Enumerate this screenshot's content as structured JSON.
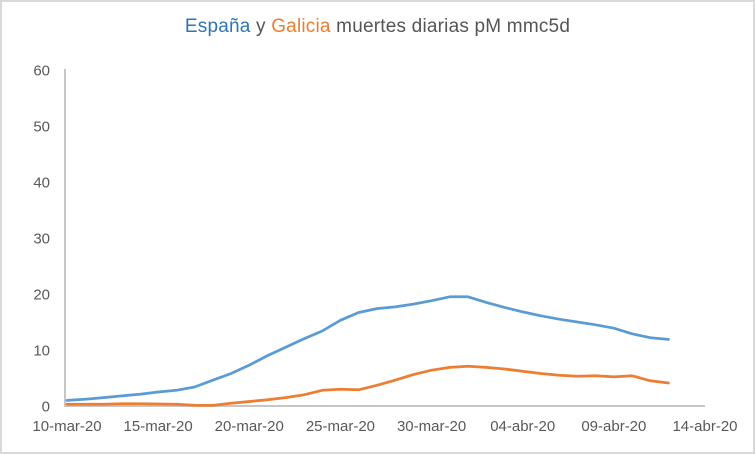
{
  "window": {
    "background": "#ffffff",
    "border_color": "#d9d9d9"
  },
  "title": {
    "series1": "España",
    "connector": " y ",
    "series2": "Galicia",
    "suffix": " muertes diarias pM mmc5d",
    "series1_color": "#2e75b6",
    "series2_color": "#ed7d31",
    "text_color": "#555555"
  },
  "chart_data": {
    "type": "line",
    "title": "España y Galicia muertes diarias pM mmc5d",
    "x": [
      "10-mar-20",
      "11-mar-20",
      "12-mar-20",
      "13-mar-20",
      "14-mar-20",
      "15-mar-20",
      "16-mar-20",
      "17-mar-20",
      "18-mar-20",
      "19-mar-20",
      "20-mar-20",
      "21-mar-20",
      "22-mar-20",
      "23-mar-20",
      "24-mar-20",
      "25-mar-20",
      "26-mar-20",
      "27-mar-20",
      "28-mar-20",
      "29-mar-20",
      "30-mar-20",
      "31-mar-20",
      "01-abr-20",
      "02-abr-20",
      "03-abr-20",
      "04-abr-20",
      "05-abr-20",
      "06-abr-20",
      "07-abr-20",
      "08-abr-20",
      "09-abr-20",
      "10-abr-20",
      "11-abr-20",
      "12-abr-20"
    ],
    "series": [
      {
        "name": "España",
        "color": "#5b9bd5",
        "values": [
          1.0,
          1.2,
          1.5,
          1.8,
          2.1,
          2.5,
          2.8,
          3.4,
          4.6,
          5.8,
          7.3,
          9.0,
          10.5,
          12.0,
          13.4,
          15.3,
          16.7,
          17.4,
          17.7,
          18.2,
          18.8,
          19.5,
          19.5,
          18.5,
          17.6,
          16.8,
          16.1,
          15.5,
          15.0,
          14.5,
          13.9,
          12.9,
          12.2,
          11.9
        ]
      },
      {
        "name": "Galicia",
        "color": "#ed7d31",
        "values": [
          0.3,
          0.3,
          0.3,
          0.4,
          0.4,
          0.35,
          0.3,
          0.15,
          0.1,
          0.5,
          0.8,
          1.1,
          1.5,
          2.0,
          2.8,
          3.0,
          2.9,
          3.7,
          4.6,
          5.6,
          6.4,
          6.9,
          7.1,
          6.9,
          6.6,
          6.2,
          5.8,
          5.5,
          5.3,
          5.4,
          5.2,
          5.4,
          4.5,
          4.1
        ]
      }
    ],
    "x_tick_labels": [
      "10-mar-20",
      "15-mar-20",
      "20-mar-20",
      "25-mar-20",
      "30-mar-20",
      "04-abr-20",
      "09-abr-20",
      "14-abr-20"
    ],
    "x_tick_interval_days": 5,
    "y_ticks": [
      0,
      10,
      20,
      30,
      40,
      50,
      60
    ],
    "ylim": [
      0,
      60
    ],
    "grid": false,
    "legend_position": "none",
    "axis_color": "#c6c6c6",
    "label_color": "#595959",
    "line_width": 2.75
  }
}
